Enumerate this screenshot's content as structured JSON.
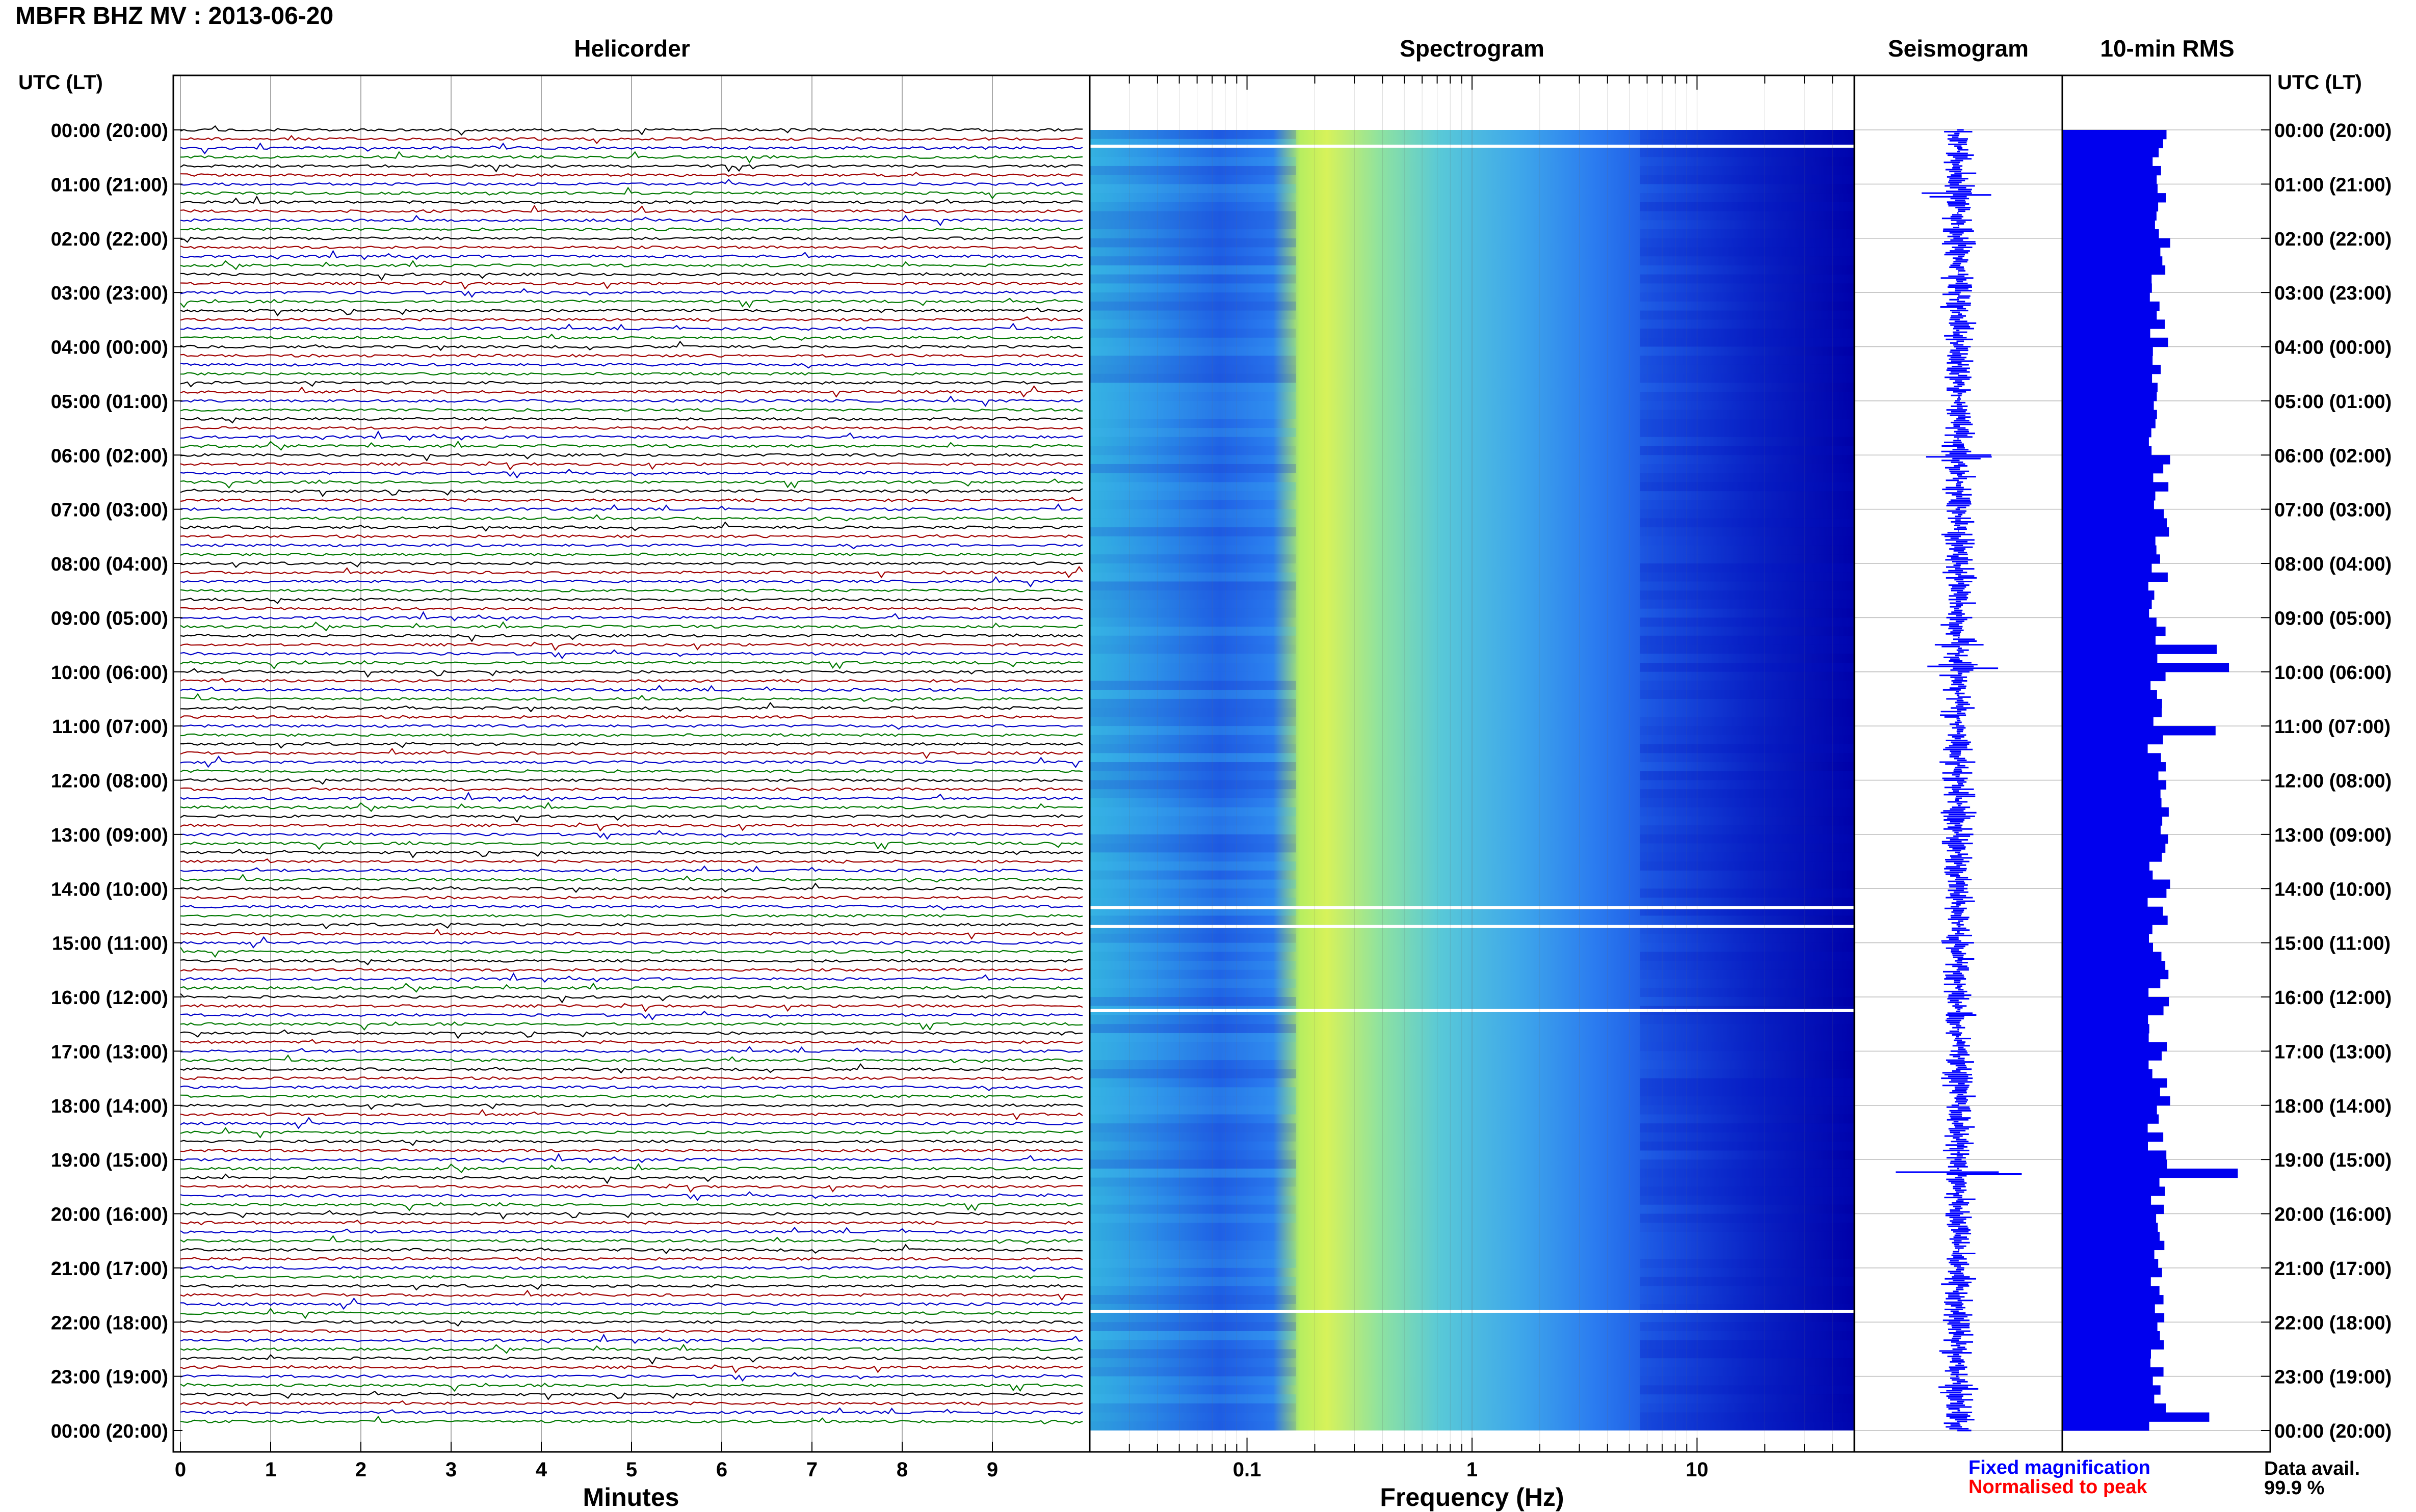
{
  "header": {
    "title": "MBFR BHZ MV : 2013-06-20",
    "panel_titles": [
      "Helicorder",
      "Spectrogram",
      "Seismogram",
      "10-min RMS"
    ],
    "time_axis_label": "UTC (LT)"
  },
  "footer": {
    "x_label_helicorder": "Minutes",
    "x_label_spectrogram": "Frequency (Hz)",
    "legend_fixed": "Fixed magnification",
    "legend_normalised": "Normalised to peak",
    "data_avail_label": "Data avail.",
    "data_avail_value": "99.9 %"
  },
  "colors": {
    "trace_colors": [
      "#000000",
      "#a00000",
      "#0000c8",
      "#007800"
    ],
    "seismogram": "#0000ff",
    "rms_bars": "#0000ee",
    "legend_fixed": "#0000ff",
    "legend_normalised": "#ff0000",
    "spectrogram_palette": [
      "#0000a0",
      "#0010d8",
      "#2a78f0",
      "#3fb8ee",
      "#66dcc2",
      "#d4f050"
    ]
  },
  "chart_data": [
    {
      "type": "helicorder",
      "title": "Helicorder",
      "xlabel": "Minutes",
      "x_ticks": [
        0,
        1,
        2,
        3,
        4,
        5,
        6,
        7,
        8,
        9
      ],
      "xlim": [
        0,
        10
      ],
      "row_minutes": 10,
      "rows": 144,
      "y_tick_labels": [
        "00:00 (20:00)",
        "01:00 (21:00)",
        "02:00 (22:00)",
        "03:00 (23:00)",
        "04:00 (00:00)",
        "05:00 (01:00)",
        "06:00 (02:00)",
        "07:00 (03:00)",
        "08:00 (04:00)",
        "09:00 (05:00)",
        "10:00 (06:00)",
        "11:00 (07:00)",
        "12:00 (08:00)",
        "13:00 (09:00)",
        "14:00 (10:00)",
        "15:00 (11:00)",
        "16:00 (12:00)",
        "17:00 (13:00)",
        "18:00 (14:00)",
        "19:00 (15:00)",
        "20:00 (16:00)",
        "21:00 (17:00)",
        "22:00 (18:00)",
        "23:00 (19:00)",
        "00:00 (20:00)"
      ]
    },
    {
      "type": "heatmap",
      "title": "Spectrogram",
      "xlabel": "Frequency (Hz)",
      "x_scale": "log",
      "xlim": [
        0.02,
        50
      ],
      "x_tick_labels": [
        "0.1",
        "1",
        "10"
      ],
      "x_tick_values": [
        0.1,
        1,
        10
      ],
      "data_gaps_utc_hours": [
        0.3,
        14.35,
        14.7,
        16.25,
        21.8
      ]
    },
    {
      "type": "line",
      "title": "Seismogram",
      "spikes_utc_hours": [
        1.2,
        6.05,
        9.5,
        9.9,
        19.25,
        23.2
      ],
      "spike_relative_amplitude": [
        0.5,
        0.4,
        0.3,
        0.5,
        1.0,
        0.3
      ]
    },
    {
      "type": "bar",
      "title": "10-min RMS",
      "orientation": "horizontal",
      "bin_minutes": 10,
      "bins": 144,
      "peaks_utc_hours": [
        9.9,
        11.0,
        9.5,
        19.2,
        23.6
      ],
      "typical_relative_length": 0.5,
      "max_relative_length": 0.85
    }
  ]
}
